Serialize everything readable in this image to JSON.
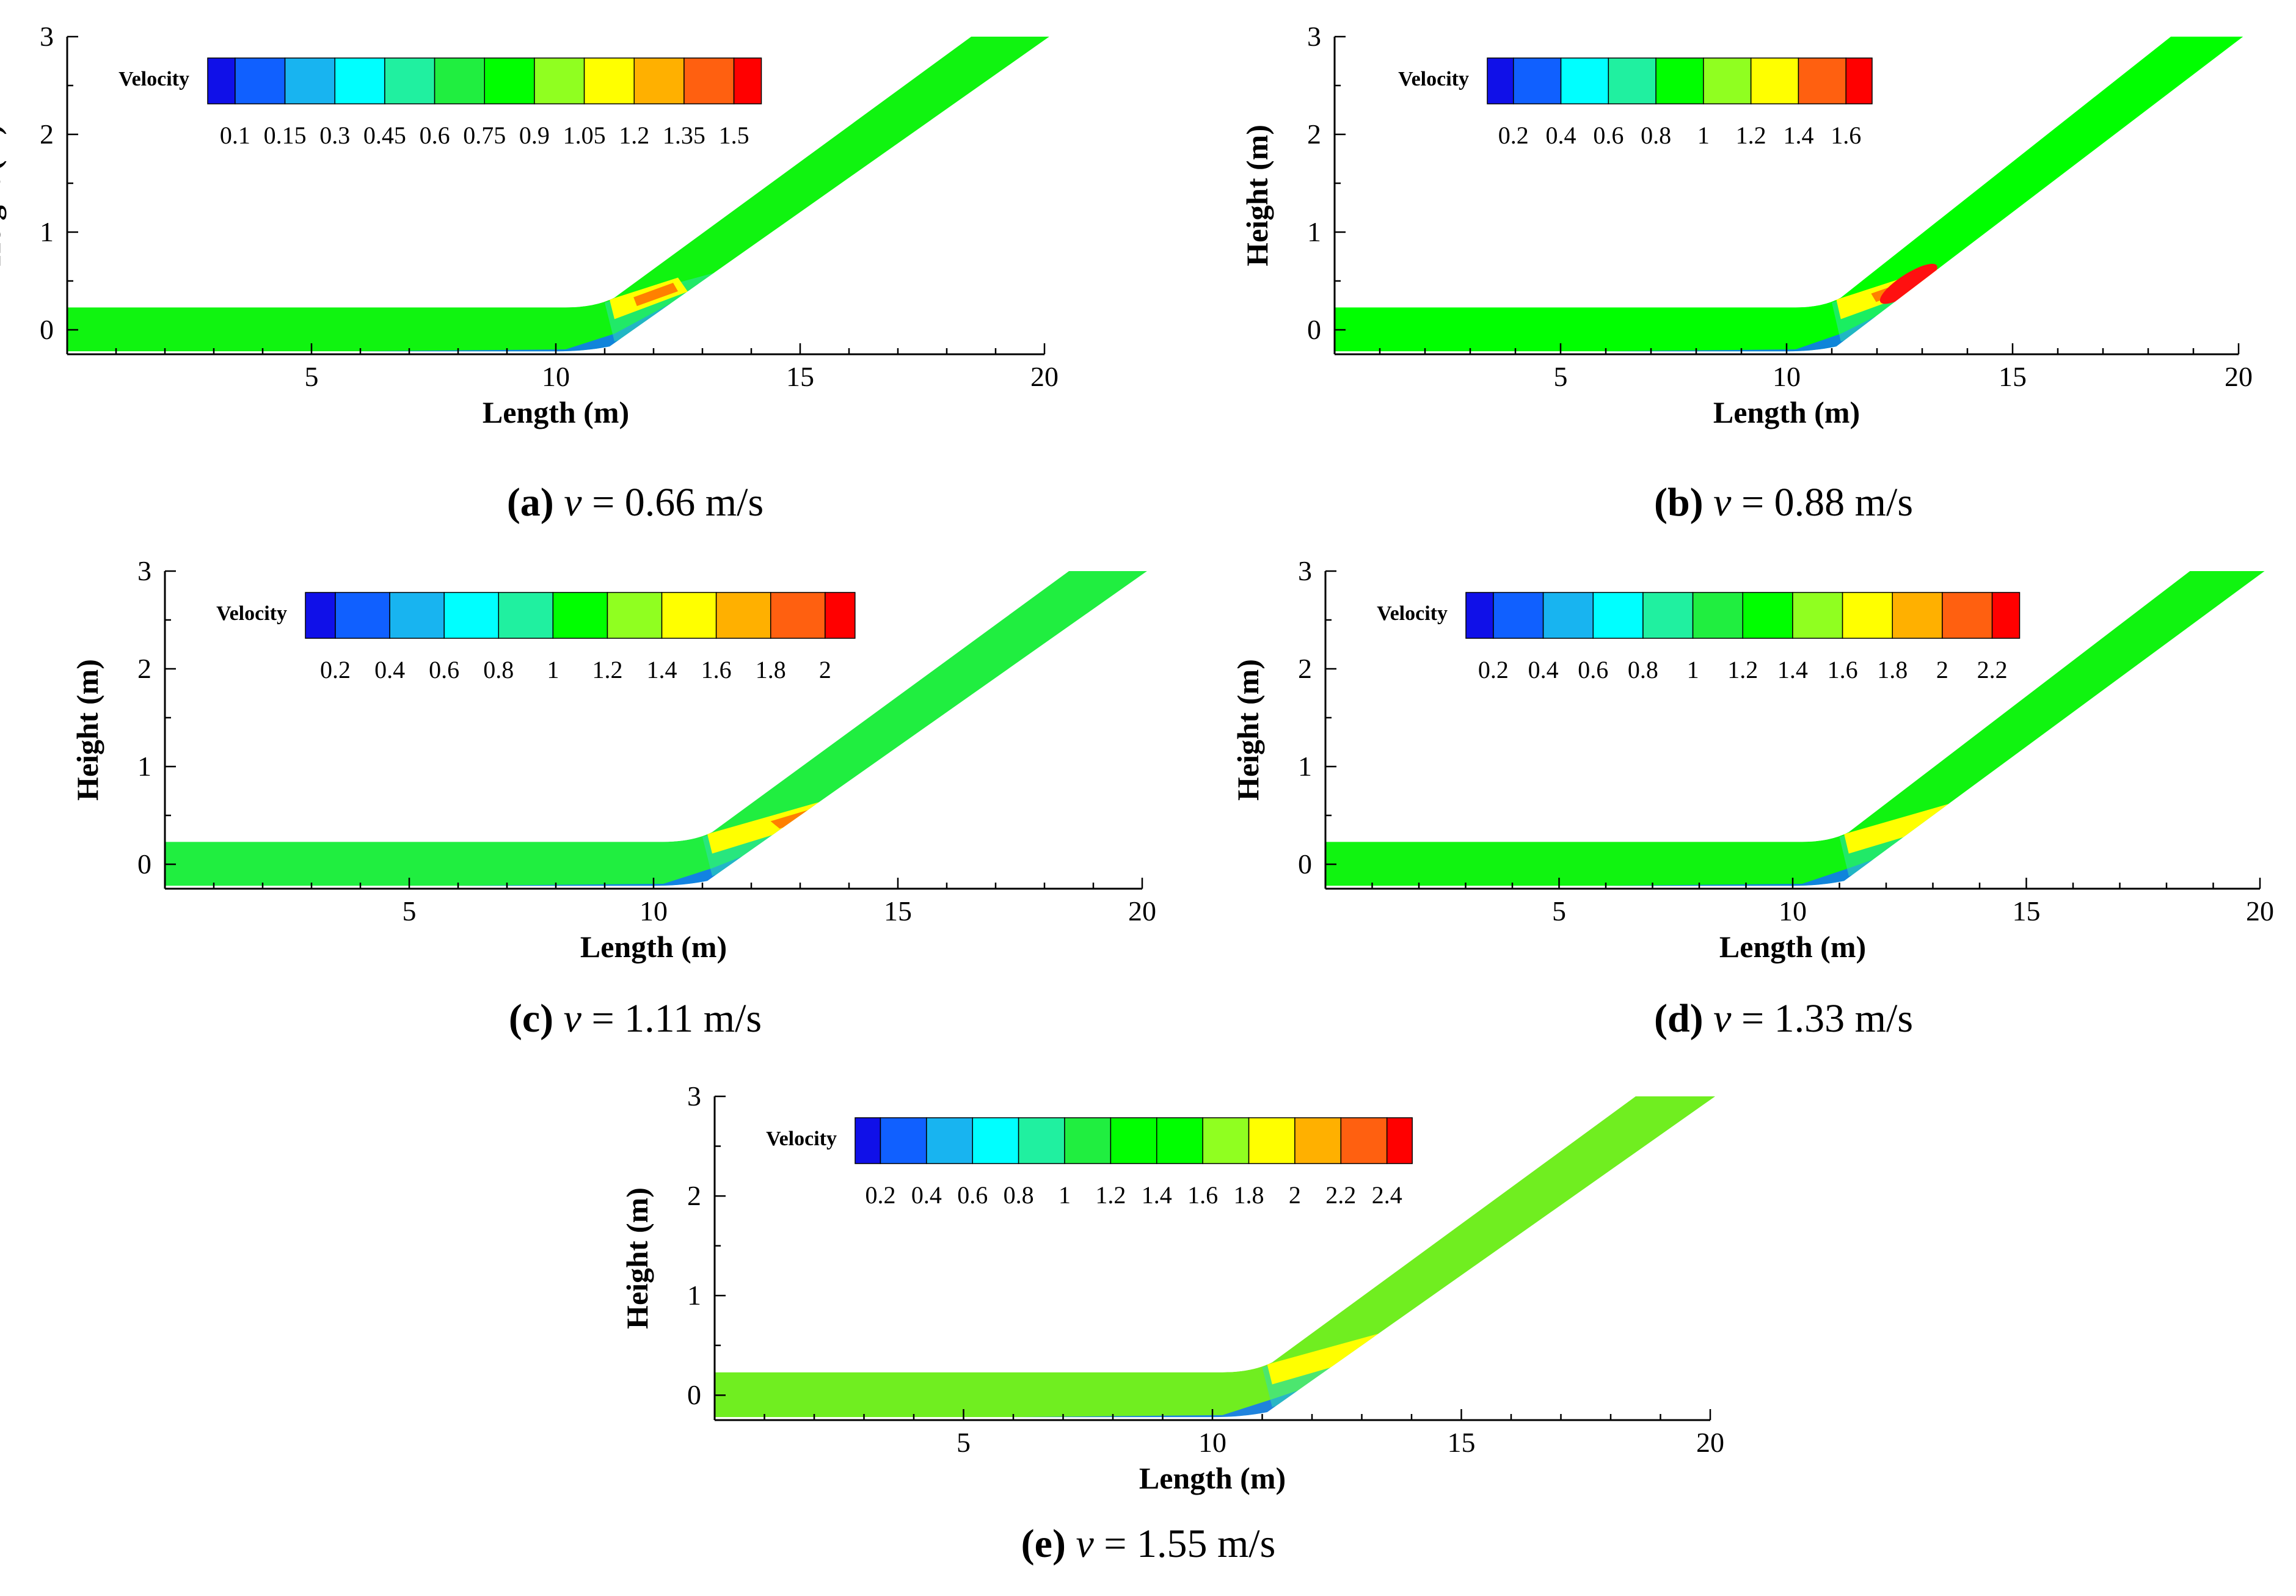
{
  "colors": {
    "palette": [
      "#1010e8",
      "#1060ff",
      "#18b4f0",
      "#00ffff",
      "#20f0a0",
      "#20ee40",
      "#00ff00",
      "#90ff20",
      "#ffff00",
      "#ffb000",
      "#ff6010",
      "#ff0000"
    ],
    "flow_background": "#10f410",
    "flow_low": "#1070ff",
    "flow_mid": "#30e0b0",
    "flow_high_a": "#ffff00",
    "flow_high_b": "#ff8000",
    "flow_peak": "#ff1010"
  },
  "chart_data": [
    {
      "type": "heatmap",
      "id": "a",
      "caption": {
        "letter": "(a)",
        "var": "v",
        "rest": " = 0.66 m/s"
      },
      "xlabel": "Length (m)",
      "ylabel": "Height (m)",
      "xlim": [
        0,
        20
      ],
      "ylim": [
        -0.25,
        3
      ],
      "xticks": [
        5,
        10,
        15,
        20
      ],
      "yticks": [
        0,
        1,
        2,
        3
      ],
      "legend": {
        "title": "Velocity",
        "ticks": [
          "0.1",
          "0.15",
          "0.3",
          "0.45",
          "0.6",
          "0.75",
          "0.9",
          "1.05",
          "1.2",
          "1.35",
          "1.5"
        ]
      },
      "flow_color": "#10f410",
      "hotspot_end_x": 12.5,
      "peak_level": "high"
    },
    {
      "type": "heatmap",
      "id": "b",
      "caption": {
        "letter": "(b)",
        "var": "v",
        "rest": " = 0.88 m/s"
      },
      "xlabel": "Length (m)",
      "ylabel": "Height (m)",
      "xlim": [
        0,
        20
      ],
      "ylim": [
        -0.25,
        3
      ],
      "xticks": [
        5,
        10,
        15,
        20
      ],
      "yticks": [
        0,
        1,
        2,
        3
      ],
      "legend": {
        "title": "Velocity",
        "ticks": [
          "0.2",
          "0.4",
          "0.6",
          "0.8",
          "1",
          "1.2",
          "1.4",
          "1.6"
        ]
      },
      "flow_color": "#00ff00",
      "hotspot_end_x": 13.3,
      "peak_level": "peak"
    },
    {
      "type": "heatmap",
      "id": "c",
      "caption": {
        "letter": "(c)",
        "var": "v",
        "rest": " = 1.11 m/s"
      },
      "xlabel": "Length (m)",
      "ylabel": "Height (m)",
      "xlim": [
        0,
        20
      ],
      "ylim": [
        -0.25,
        3
      ],
      "xticks": [
        5,
        10,
        15,
        20
      ],
      "yticks": [
        0,
        1,
        2,
        3
      ],
      "legend": {
        "title": "Velocity",
        "ticks": [
          "0.2",
          "0.4",
          "0.6",
          "0.8",
          "1",
          "1.2",
          "1.4",
          "1.6",
          "1.8",
          "2"
        ]
      },
      "flow_color": "#20ee40",
      "hotspot_end_x": 14.8,
      "peak_level": "peak"
    },
    {
      "type": "heatmap",
      "id": "d",
      "caption": {
        "letter": "(d)",
        "var": "v",
        "rest": " = 1.33 m/s"
      },
      "xlabel": "Length (m)",
      "ylabel": "Height (m)",
      "xlim": [
        0,
        20
      ],
      "ylim": [
        -0.25,
        3
      ],
      "xticks": [
        5,
        10,
        15,
        20
      ],
      "yticks": [
        0,
        1,
        2,
        3
      ],
      "legend": {
        "title": "Velocity",
        "ticks": [
          "0.2",
          "0.4",
          "0.6",
          "0.8",
          "1",
          "1.2",
          "1.4",
          "1.6",
          "1.8",
          "2",
          "2.2"
        ]
      },
      "flow_color": "#10f410",
      "hotspot_end_x": 18.3,
      "peak_level": "peak"
    },
    {
      "type": "heatmap",
      "id": "e",
      "caption": {
        "letter": "(e)",
        "var": "v",
        "rest": " = 1.55 m/s"
      },
      "xlabel": "Length (m)",
      "ylabel": "Height (m)",
      "xlim": [
        0,
        20
      ],
      "ylim": [
        -0.25,
        3
      ],
      "xticks": [
        5,
        10,
        15,
        20
      ],
      "yticks": [
        0,
        1,
        2,
        3
      ],
      "legend": {
        "title": "Velocity",
        "ticks": [
          "0.2",
          "0.4",
          "0.6",
          "0.8",
          "1",
          "1.2",
          "1.4",
          "1.6",
          "1.8",
          "2",
          "2.2",
          "2.4"
        ]
      },
      "flow_color": "#70ee20",
      "hotspot_end_x": 18.2,
      "peak_level": "peak"
    }
  ]
}
